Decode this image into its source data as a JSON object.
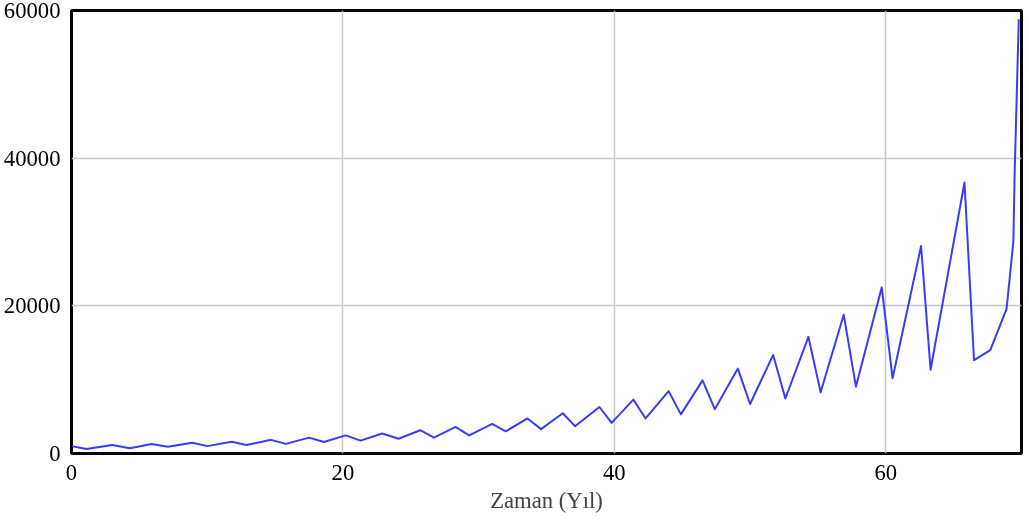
{
  "chart_data": {
    "type": "line",
    "xlabel": "Zaman (Yıl)",
    "xlim": [
      0,
      70
    ],
    "ylim": [
      0,
      60000
    ],
    "xticks": [
      0,
      20,
      40,
      60
    ],
    "yticks": [
      0,
      20000,
      40000,
      60000
    ],
    "grid": true,
    "marker": "none",
    "line_style": "solid",
    "series": [
      {
        "color": "#3a3aff",
        "x": [
          0,
          1.1,
          3.0,
          4.3,
          5.9,
          7.1,
          8.9,
          10.0,
          11.8,
          12.9,
          14.7,
          15.8,
          17.5,
          18.6,
          20.2,
          21.3,
          22.9,
          24.1,
          25.7,
          26.7,
          28.3,
          29.3,
          31.0,
          32.0,
          33.6,
          34.6,
          36.2,
          37.1,
          38.9,
          39.8,
          41.4,
          42.3,
          44.0,
          44.9,
          46.5,
          47.4,
          49.1,
          50.0,
          51.7,
          52.6,
          54.3,
          55.2,
          56.9,
          57.8,
          59.7,
          60.5,
          62.6,
          63.3,
          65.8,
          66.5,
          67.7,
          68.9,
          69.4,
          69.5,
          69.8
        ],
        "values": [
          1000,
          600,
          1150,
          700,
          1300,
          900,
          1450,
          1000,
          1600,
          1150,
          1850,
          1300,
          2150,
          1550,
          2450,
          1750,
          2700,
          2000,
          3150,
          2150,
          3600,
          2450,
          4000,
          3000,
          4750,
          3300,
          5450,
          3700,
          6300,
          4150,
          7300,
          4750,
          8450,
          5300,
          9900,
          6000,
          11500,
          6700,
          13350,
          7450,
          15800,
          8300,
          18800,
          9050,
          22500,
          10200,
          28100,
          11350,
          36700,
          12650,
          14000,
          19600,
          28700,
          38300,
          58800
        ]
      }
    ]
  }
}
